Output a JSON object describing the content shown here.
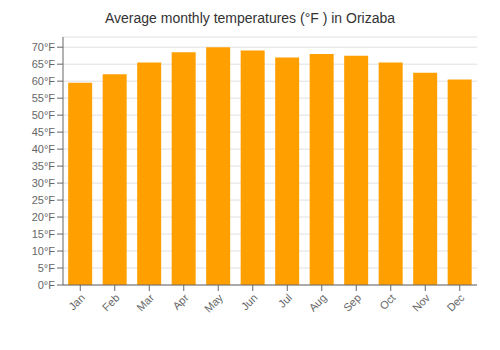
{
  "chart_data": {
    "type": "bar",
    "title": "Average monthly temperatures (°F ) in Orizaba",
    "categories": [
      "Jan",
      "Feb",
      "Mar",
      "Apr",
      "May",
      "Jun",
      "Jul",
      "Aug",
      "Sep",
      "Oct",
      "Nov",
      "Dec"
    ],
    "values": [
      59.5,
      62.0,
      65.5,
      68.5,
      70.0,
      69.0,
      67.0,
      68.0,
      67.5,
      65.5,
      62.5,
      60.5
    ],
    "color": "#FFA000",
    "ylim": [
      0,
      73
    ],
    "yticks": [
      {
        "value": 0,
        "label": "0°F"
      },
      {
        "value": 5,
        "label": "5°F"
      },
      {
        "value": 10,
        "label": "10°F"
      },
      {
        "value": 15,
        "label": "15°F"
      },
      {
        "value": 20,
        "label": "20°F"
      },
      {
        "value": 25,
        "label": "25°F"
      },
      {
        "value": 30,
        "label": "30°F"
      },
      {
        "value": 35,
        "label": "35°F"
      },
      {
        "value": 40,
        "label": "40°F"
      },
      {
        "value": 45,
        "label": "45°F"
      },
      {
        "value": 50,
        "label": "50°F"
      },
      {
        "value": 55,
        "label": "55°F"
      },
      {
        "value": 60,
        "label": "60°F"
      },
      {
        "value": 65,
        "label": "65°F"
      },
      {
        "value": 70,
        "label": "70°F"
      }
    ],
    "grid": true
  }
}
